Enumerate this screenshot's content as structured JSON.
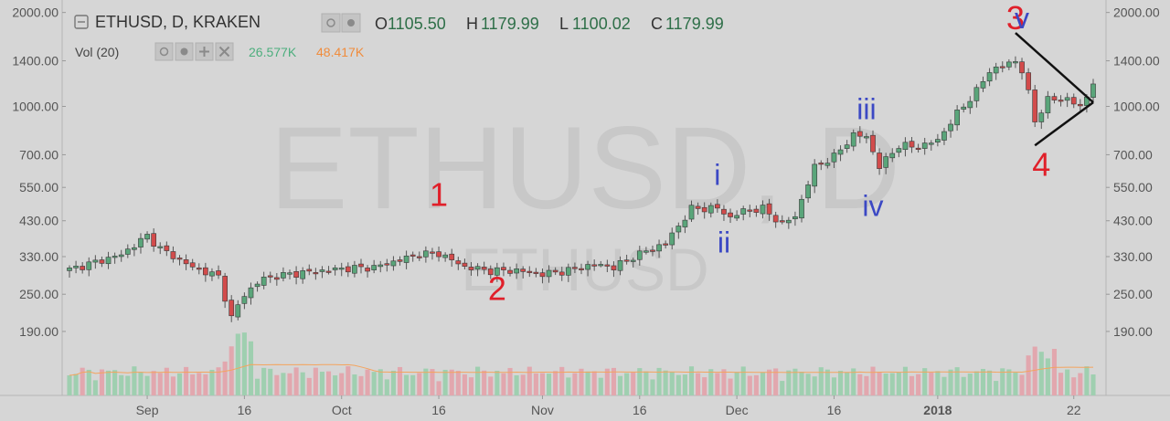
{
  "header": {
    "symbol_line": "ETHUSD, D, KRAKEN",
    "o_label": "O",
    "o_value": "1105.50",
    "h_label": "H",
    "h_value": "1179.99",
    "l_label": "L",
    "l_value": "1100.02",
    "c_label": "C",
    "c_value": "1179.99",
    "vol_label": "Vol (20)",
    "vol_value": "26.577K",
    "vol_ma_value": "48.417K"
  },
  "watermark": {
    "main": "ETHUSD, D",
    "sub": "ETHUSD"
  },
  "colors": {
    "background": "#d6d6d6",
    "up_candle": "#5aa57a",
    "down_candle": "#d24b4b",
    "wick": "#555555",
    "vol_up": "#9fcfb0",
    "vol_down": "#e2a7ae",
    "vol_ma": "#f4a45e",
    "annotation_red": "#e0202a",
    "annotation_blue": "#3b48c4",
    "header_value": "#2e6f48",
    "vol_value": "#4cae7d",
    "vol_ma_text": "#f08c3c"
  },
  "chart_data": {
    "type": "candlestick",
    "title": "ETHUSD, D, KRAKEN",
    "y_scale": "log",
    "ylim": [
      150,
      2050
    ],
    "y_ticks": [
      "2000.00",
      "1400.00",
      "1000.00",
      "700.00",
      "550.00",
      "430.00",
      "330.00",
      "250.00",
      "190.00"
    ],
    "x_ticks": [
      "Sep",
      "16",
      "Oct",
      "16",
      "Nov",
      "16",
      "Dec",
      "16",
      "2018",
      "22"
    ],
    "x_tick_dates": [
      "2017-09-01",
      "2017-09-16",
      "2017-10-01",
      "2017-10-16",
      "2017-11-01",
      "2017-11-16",
      "2017-12-01",
      "2017-12-16",
      "2018-01-01",
      "2018-01-22"
    ],
    "start_date": "2017-08-20",
    "end_date": "2018-01-25",
    "close_anchors": [
      [
        "2017-08-20",
        300
      ],
      [
        "2017-08-28",
        335
      ],
      [
        "2017-09-01",
        385
      ],
      [
        "2017-09-03",
        350
      ],
      [
        "2017-09-08",
        305
      ],
      [
        "2017-09-12",
        285
      ],
      [
        "2017-09-14",
        210
      ],
      [
        "2017-09-16",
        250
      ],
      [
        "2017-09-19",
        282
      ],
      [
        "2017-09-23",
        290
      ],
      [
        "2017-10-01",
        302
      ],
      [
        "2017-10-06",
        305
      ],
      [
        "2017-10-13",
        336
      ],
      [
        "2017-10-16",
        338
      ],
      [
        "2017-10-20",
        306
      ],
      [
        "2017-10-24",
        297
      ],
      [
        "2017-10-28",
        298
      ],
      [
        "2017-11-01",
        290
      ],
      [
        "2017-11-05",
        298
      ],
      [
        "2017-11-09",
        312
      ],
      [
        "2017-11-12",
        305
      ],
      [
        "2017-11-15",
        330
      ],
      [
        "2017-11-20",
        365
      ],
      [
        "2017-11-24",
        470
      ],
      [
        "2017-11-28",
        472
      ],
      [
        "2017-11-30",
        440
      ],
      [
        "2017-12-02",
        463
      ],
      [
        "2017-12-05",
        470
      ],
      [
        "2017-12-08",
        420
      ],
      [
        "2017-12-10",
        445
      ],
      [
        "2017-12-13",
        640
      ],
      [
        "2017-12-16",
        690
      ],
      [
        "2017-12-19",
        810
      ],
      [
        "2017-12-21",
        800
      ],
      [
        "2017-12-23",
        640
      ],
      [
        "2017-12-26",
        750
      ],
      [
        "2017-12-29",
        740
      ],
      [
        "2018-01-01",
        780
      ],
      [
        "2018-01-04",
        950
      ],
      [
        "2018-01-07",
        1120
      ],
      [
        "2018-01-09",
        1300
      ],
      [
        "2018-01-13",
        1400
      ],
      [
        "2018-01-14",
        1300
      ],
      [
        "2018-01-15",
        1100
      ],
      [
        "2018-01-16",
        900
      ],
      [
        "2018-01-18",
        1050
      ],
      [
        "2018-01-21",
        1060
      ],
      [
        "2018-01-23",
        990
      ],
      [
        "2018-01-25",
        1180
      ]
    ],
    "volume_note": "daily volume bars, green up / red down, with orange 20-period MA",
    "annotations": [
      {
        "label": "1",
        "date": "2017-10-16",
        "value": 480,
        "color": "red"
      },
      {
        "label": "2",
        "date": "2017-10-25",
        "value": 240,
        "color": "red"
      },
      {
        "label": "i",
        "date": "2017-11-28",
        "value": 560,
        "color": "blue"
      },
      {
        "label": "ii",
        "date": "2017-11-29",
        "value": 340,
        "color": "blue"
      },
      {
        "label": "iii",
        "date": "2017-12-21",
        "value": 910,
        "color": "blue"
      },
      {
        "label": "iv",
        "date": "2017-12-22",
        "value": 445,
        "color": "blue"
      },
      {
        "label": "3",
        "date": "2018-01-13",
        "value": 1770,
        "color": "red"
      },
      {
        "label": "v",
        "date": "2018-01-14",
        "value": 1780,
        "color": "blue"
      },
      {
        "label": "4",
        "date": "2018-01-17",
        "value": 600,
        "color": "red"
      }
    ],
    "triangle_lines": [
      [
        [
          "2018-01-13",
          1720
        ],
        [
          "2018-01-25",
          1030
        ]
      ],
      [
        [
          "2018-01-16",
          750
        ],
        [
          "2018-01-25",
          1030
        ]
      ]
    ]
  }
}
